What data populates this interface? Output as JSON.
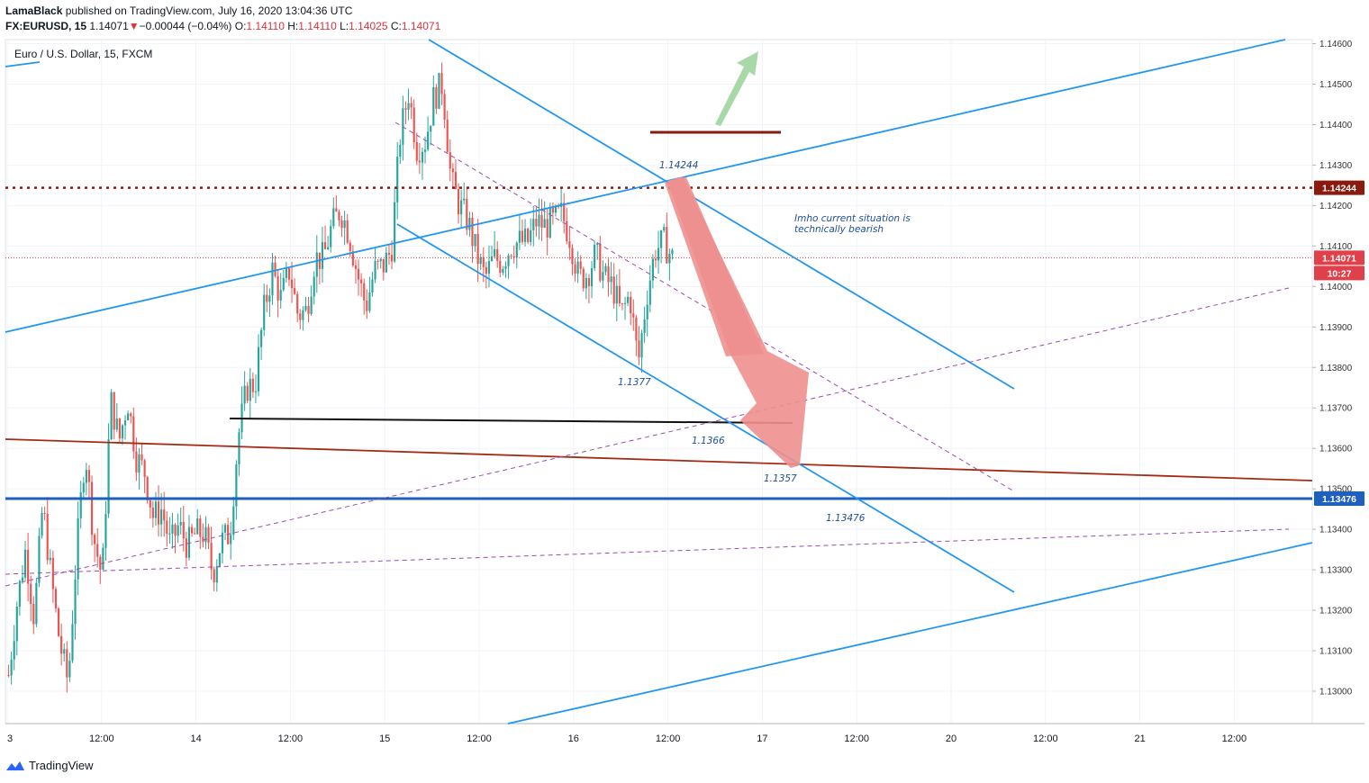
{
  "header": {
    "author": "LamaBlack",
    "published_text": "published on TradingView.com, July 16, 2020 13:04:36 UTC",
    "symbol": "FX:EURUSD, 15",
    "last": "1.14071",
    "change": "−0.00044 (−0.04%)",
    "o_label": "O:",
    "o_value": "1.14110",
    "h_label": "H:",
    "h_value": "1.14110",
    "l_label": "L:",
    "l_value": "1.14025",
    "c_label": "C:",
    "c_value": "1.14071"
  },
  "footer": {
    "brand": "TradingView",
    "logo_icon": "tradingview-logo-icon"
  },
  "chart_data": {
    "type": "candlestick",
    "title": "Euro / U.S. Dollar, 15, FXCM",
    "ylim": [
      1.1292,
      1.1461
    ],
    "y_ticks": [
      "1.14600",
      "1.14500",
      "1.14400",
      "1.14300",
      "1.14200",
      "1.14100",
      "1.14000",
      "1.13900",
      "1.13800",
      "1.13700",
      "1.13600",
      "1.13500",
      "1.13400",
      "1.13300",
      "1.13200",
      "1.13100",
      "1.13000"
    ],
    "x_ticks": [
      "3",
      "12:00",
      "14",
      "12:00",
      "15",
      "12:00",
      "16",
      "12:00",
      "17",
      "12:00",
      "20",
      "12:00",
      "21",
      "12:00"
    ],
    "price_markers": [
      {
        "value": "1.14244",
        "color": "#8b1a0e"
      },
      {
        "value": "1.14071",
        "color": "#e0404a"
      },
      {
        "value": "10:27",
        "color": "#e0404a"
      },
      {
        "value": "1.13476",
        "color": "#1f5fbf"
      }
    ],
    "annotations": [
      {
        "text": "1.14244"
      },
      {
        "text": "Imho current situation is"
      },
      {
        "text": "technically bearish"
      },
      {
        "text": "1.1377"
      },
      {
        "text": "1.1366"
      },
      {
        "text": "1.1357"
      },
      {
        "text": "1.13476"
      }
    ],
    "key_levels": {
      "resistance_dotted": 1.14244,
      "current_price": 1.14071,
      "support_blue": 1.13476
    },
    "colors": {
      "up": "#26a69a",
      "down": "#ef5350",
      "channel": "#2196f3",
      "support_line": "#1f5fbf",
      "dark_red": "#8b1a0e",
      "bearish_arrow": "#ee8f8f",
      "bullish_arrow": "#a9d8a8",
      "fan": "#9c4bb0"
    },
    "price_path": [
      1.1304,
      1.1322,
      1.1335,
      1.1318,
      1.1346,
      1.1328,
      1.1312,
      1.1302,
      1.1335,
      1.136,
      1.1338,
      1.1328,
      1.1372,
      1.1362,
      1.1372,
      1.1358,
      1.1354,
      1.1343,
      1.1345,
      1.1336,
      1.1341,
      1.1336,
      1.1339,
      1.1339,
      1.1329,
      1.1337,
      1.1339,
      1.1363,
      1.1375,
      1.1376,
      1.1394,
      1.1404,
      1.1397,
      1.1404,
      1.1393,
      1.1394,
      1.1407,
      1.1407,
      1.1415,
      1.1419,
      1.1413,
      1.1403,
      1.1395,
      1.1404,
      1.1405,
      1.1409,
      1.1437,
      1.1448,
      1.1434,
      1.1436,
      1.1447,
      1.145,
      1.1426,
      1.142,
      1.1416,
      1.1408,
      1.1402,
      1.1407,
      1.1406,
      1.141,
      1.1411,
      1.1411,
      1.1416,
      1.1415,
      1.1416,
      1.1418,
      1.1412,
      1.1402,
      1.1403,
      1.1408,
      1.1402,
      1.14,
      1.1393,
      1.1398,
      1.1381,
      1.1398,
      1.1409,
      1.1411,
      1.1407
    ]
  }
}
